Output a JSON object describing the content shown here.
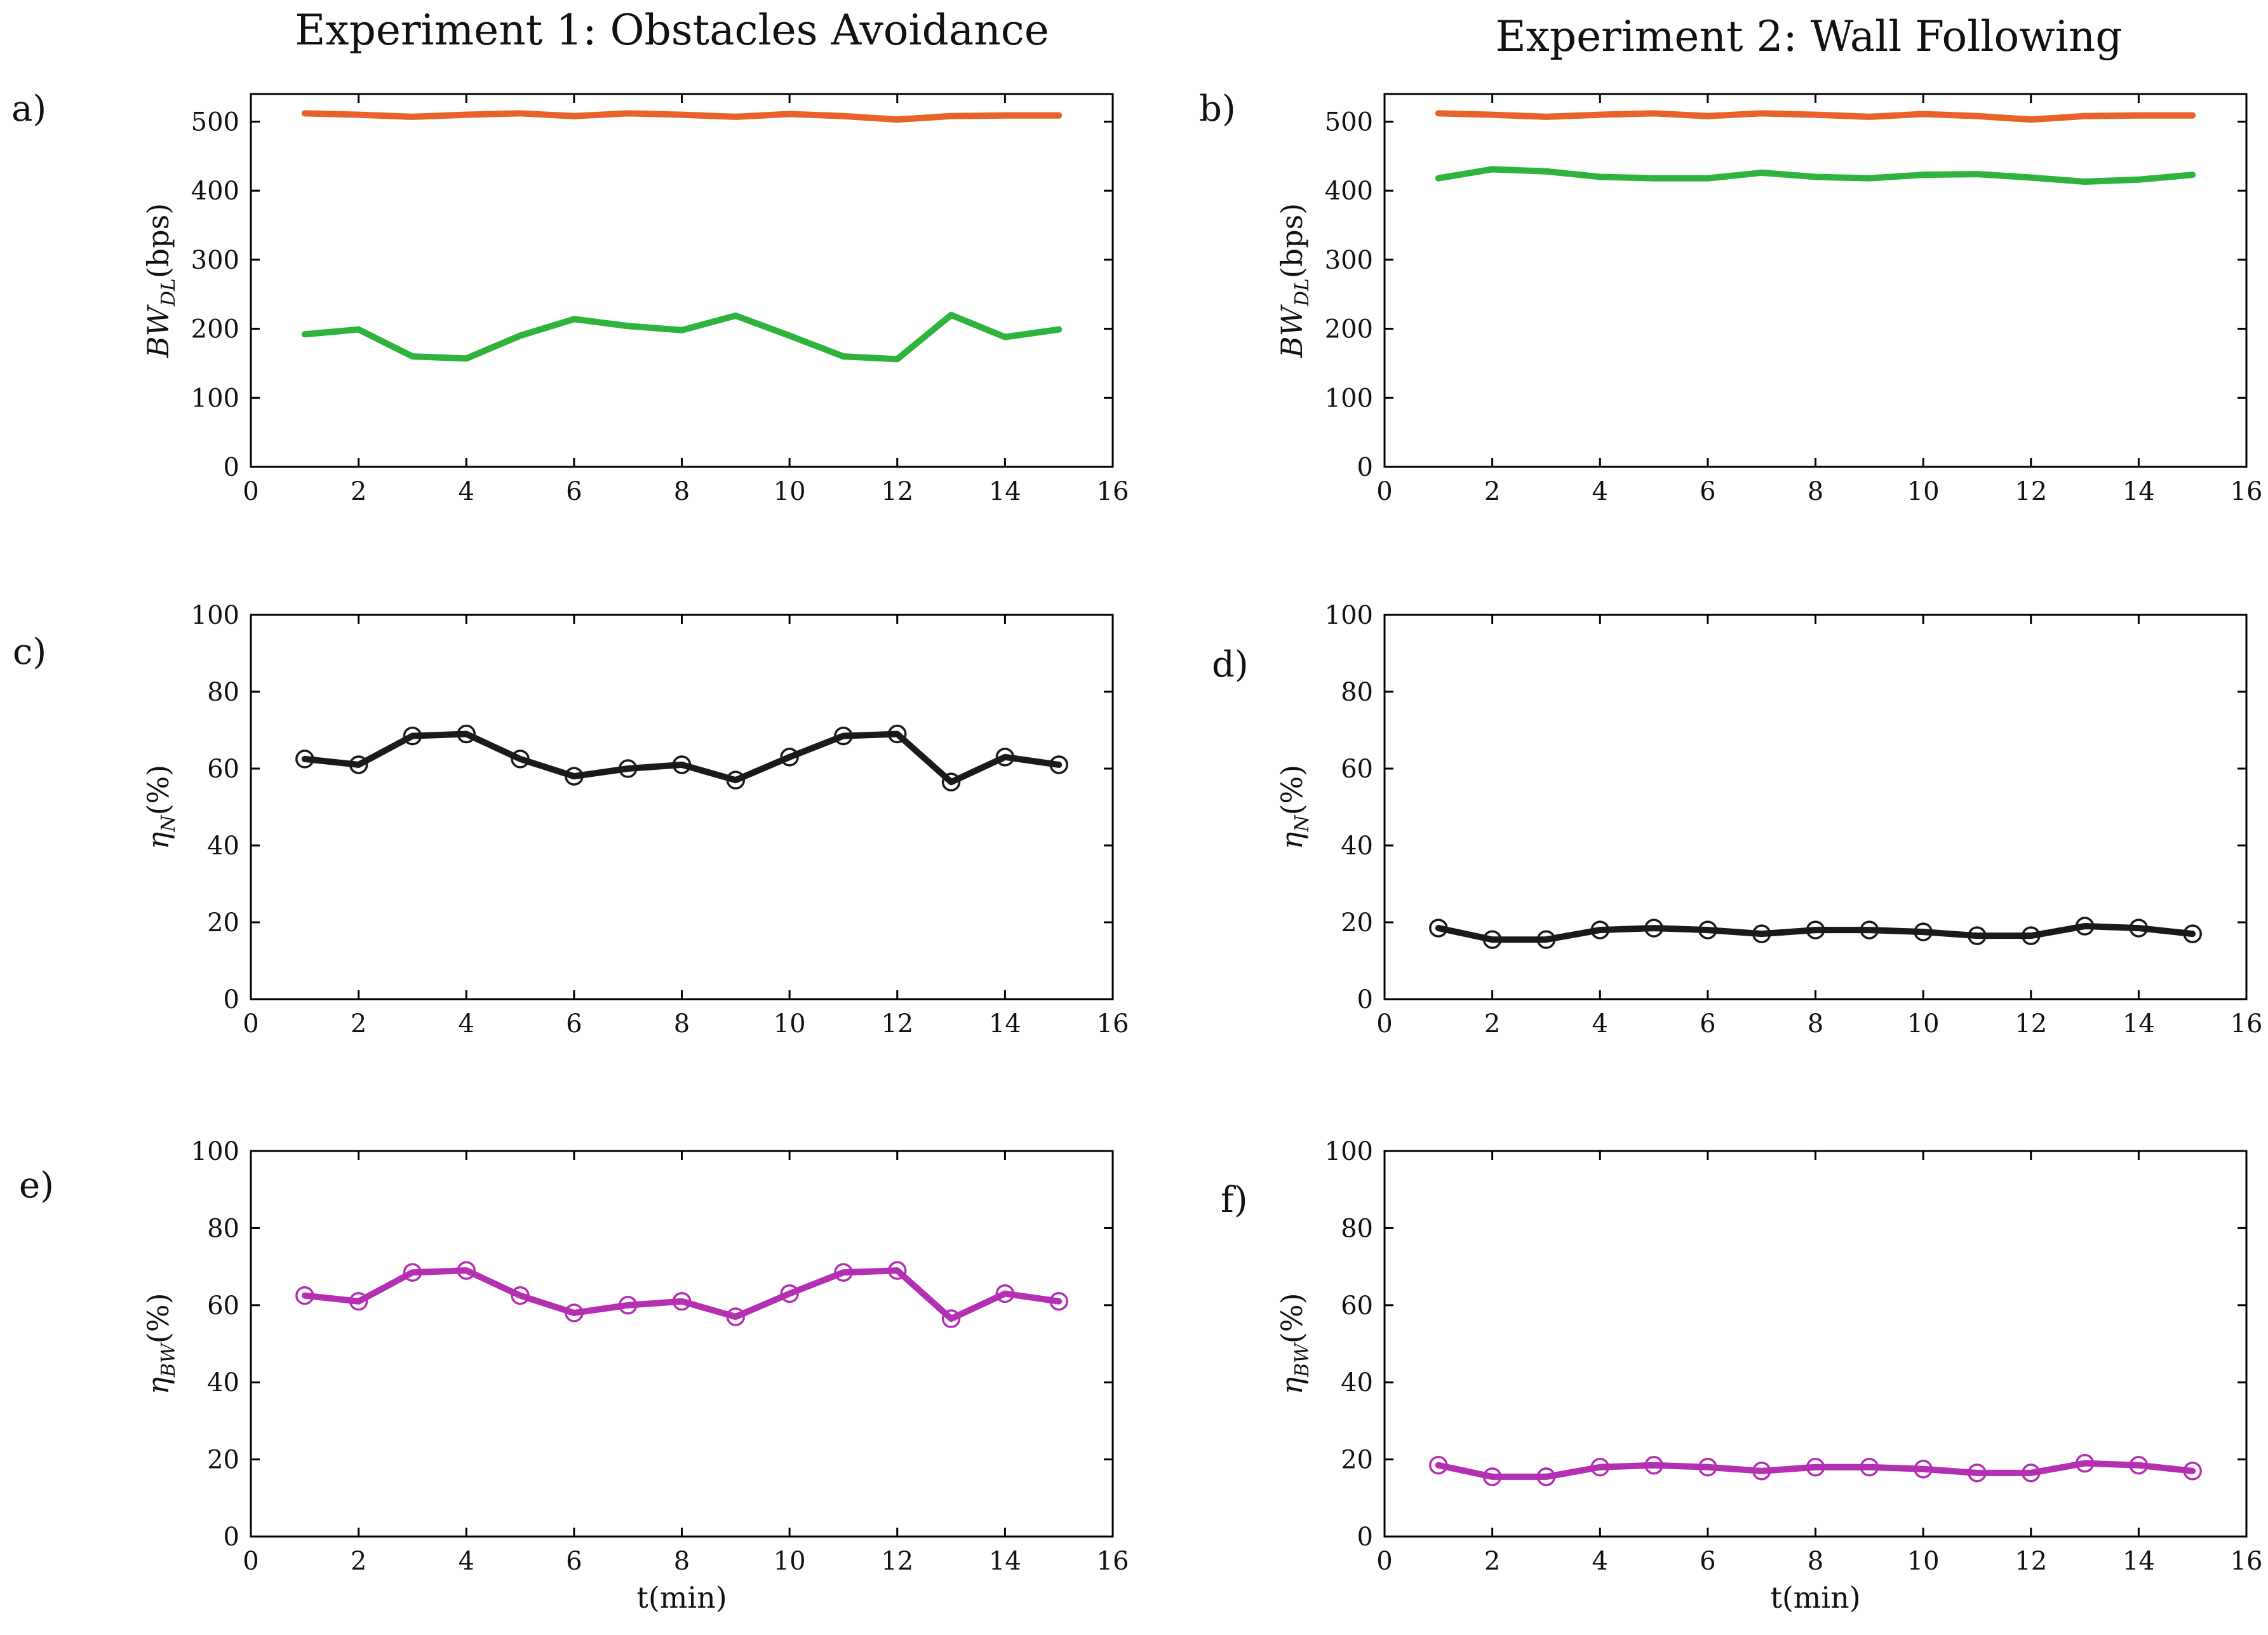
{
  "figure": {
    "col_titles": [
      "Experiment 1: Obstacles Avoidance",
      "Experiment 2: Wall Following"
    ],
    "colors": {
      "orange": "#e8622a",
      "green": "#2eb33c",
      "black": "#1a1a1a",
      "magenta": "#b52fb2"
    }
  },
  "chart_data": [
    {
      "id": "a",
      "panel_label": "a)",
      "type": "line",
      "ylabel_main": "BW",
      "ylabel_sub": "DL",
      "ylabel_unit": "(bps)",
      "ylabel_italic": true,
      "xlabel": "",
      "xlim": [
        0,
        16
      ],
      "ylim": [
        0,
        540
      ],
      "xticks": [
        0,
        2,
        4,
        6,
        8,
        10,
        12,
        14,
        16
      ],
      "yticks": [
        0,
        100,
        200,
        300,
        400,
        500
      ],
      "x": [
        1,
        2,
        3,
        4,
        5,
        6,
        7,
        8,
        9,
        10,
        11,
        12,
        13,
        14,
        15
      ],
      "series": [
        {
          "name": "orange",
          "color": "#e8622a",
          "marker": "none",
          "values": [
            512,
            510,
            507,
            510,
            512,
            508,
            512,
            510,
            507,
            511,
            508,
            503,
            508,
            509,
            509
          ]
        },
        {
          "name": "green",
          "color": "#2eb33c",
          "marker": "none",
          "values": [
            192,
            199,
            160,
            157,
            190,
            214,
            204,
            198,
            219,
            190,
            160,
            156,
            220,
            188,
            199
          ]
        }
      ]
    },
    {
      "id": "b",
      "panel_label": "b)",
      "type": "line",
      "ylabel_main": "BW",
      "ylabel_sub": "DL",
      "ylabel_unit": "(bps)",
      "ylabel_italic": true,
      "xlabel": "",
      "xlim": [
        0,
        16
      ],
      "ylim": [
        0,
        540
      ],
      "xticks": [
        0,
        2,
        4,
        6,
        8,
        10,
        12,
        14,
        16
      ],
      "yticks": [
        0,
        100,
        200,
        300,
        400,
        500
      ],
      "x": [
        1,
        2,
        3,
        4,
        5,
        6,
        7,
        8,
        9,
        10,
        11,
        12,
        13,
        14,
        15
      ],
      "series": [
        {
          "name": "orange",
          "color": "#e8622a",
          "marker": "none",
          "values": [
            512,
            510,
            507,
            510,
            512,
            508,
            512,
            510,
            507,
            511,
            508,
            503,
            508,
            509,
            509
          ]
        },
        {
          "name": "green",
          "color": "#2eb33c",
          "marker": "none",
          "values": [
            418,
            431,
            428,
            420,
            418,
            418,
            426,
            420,
            418,
            423,
            424,
            419,
            413,
            416,
            423
          ]
        }
      ]
    },
    {
      "id": "c",
      "panel_label": "c)",
      "type": "line",
      "ylabel_main": "η",
      "ylabel_sub": "N",
      "ylabel_unit": "(%)",
      "ylabel_italic": true,
      "xlabel": "",
      "xlim": [
        0,
        16
      ],
      "ylim": [
        0,
        100
      ],
      "xticks": [
        0,
        2,
        4,
        6,
        8,
        10,
        12,
        14,
        16
      ],
      "yticks": [
        0,
        20,
        40,
        60,
        80,
        100
      ],
      "x": [
        1,
        2,
        3,
        4,
        5,
        6,
        7,
        8,
        9,
        10,
        11,
        12,
        13,
        14,
        15
      ],
      "series": [
        {
          "name": "eta_N",
          "color": "#1a1a1a",
          "marker": "circle",
          "values": [
            62.5,
            61,
            68.5,
            69,
            62.5,
            58,
            60,
            61,
            57,
            63,
            68.5,
            69,
            56.5,
            63,
            61
          ]
        }
      ]
    },
    {
      "id": "d",
      "panel_label": "d)",
      "type": "line",
      "ylabel_main": "η",
      "ylabel_sub": "N",
      "ylabel_unit": "(%)",
      "ylabel_italic": true,
      "xlabel": "",
      "xlim": [
        0,
        16
      ],
      "ylim": [
        0,
        100
      ],
      "xticks": [
        0,
        2,
        4,
        6,
        8,
        10,
        12,
        14,
        16
      ],
      "yticks": [
        0,
        20,
        40,
        60,
        80,
        100
      ],
      "x": [
        1,
        2,
        3,
        4,
        5,
        6,
        7,
        8,
        9,
        10,
        11,
        12,
        13,
        14,
        15
      ],
      "series": [
        {
          "name": "eta_N",
          "color": "#1a1a1a",
          "marker": "circle",
          "values": [
            18.5,
            15.5,
            15.5,
            18,
            18.5,
            18,
            17,
            18,
            18,
            17.5,
            16.5,
            16.5,
            19,
            18.5,
            17
          ]
        }
      ]
    },
    {
      "id": "e",
      "panel_label": "e)",
      "type": "line",
      "ylabel_main": "η",
      "ylabel_sub": "BW",
      "ylabel_unit": "(%)",
      "ylabel_italic": true,
      "xlabel": "t(min)",
      "xlim": [
        0,
        16
      ],
      "ylim": [
        0,
        100
      ],
      "xticks": [
        0,
        2,
        4,
        6,
        8,
        10,
        12,
        14,
        16
      ],
      "yticks": [
        0,
        20,
        40,
        60,
        80,
        100
      ],
      "x": [
        1,
        2,
        3,
        4,
        5,
        6,
        7,
        8,
        9,
        10,
        11,
        12,
        13,
        14,
        15
      ],
      "series": [
        {
          "name": "eta_BW",
          "color": "#b52fb2",
          "marker": "circle",
          "values": [
            62.5,
            61,
            68.5,
            69,
            62.5,
            58,
            60,
            61,
            57,
            63,
            68.5,
            69,
            56.5,
            63,
            61
          ]
        }
      ]
    },
    {
      "id": "f",
      "panel_label": "f)",
      "type": "line",
      "ylabel_main": "η",
      "ylabel_sub": "BW",
      "ylabel_unit": "(%)",
      "ylabel_italic": true,
      "xlabel": "t(min)",
      "xlim": [
        0,
        16
      ],
      "ylim": [
        0,
        100
      ],
      "xticks": [
        0,
        2,
        4,
        6,
        8,
        10,
        12,
        14,
        16
      ],
      "yticks": [
        0,
        20,
        40,
        60,
        80,
        100
      ],
      "x": [
        1,
        2,
        3,
        4,
        5,
        6,
        7,
        8,
        9,
        10,
        11,
        12,
        13,
        14,
        15
      ],
      "series": [
        {
          "name": "eta_BW",
          "color": "#b52fb2",
          "marker": "circle",
          "values": [
            18.5,
            15.5,
            15.5,
            18,
            18.5,
            18,
            17,
            18,
            18,
            17.5,
            16.5,
            16.5,
            19,
            18.5,
            17
          ]
        }
      ]
    }
  ]
}
